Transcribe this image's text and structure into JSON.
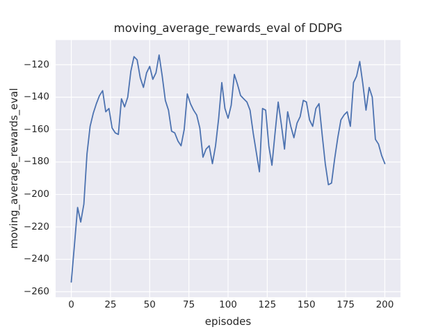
{
  "figure": {
    "background": "#ffffff",
    "axes_background": "#eaeaf2",
    "grid_color": "#ffffff",
    "text_color": "#262626",
    "line_color": "#4c72b0"
  },
  "chart_data": {
    "type": "line",
    "title": "moving_average_rewards_eval of DDPG",
    "xlabel": "episodes",
    "ylabel": "moving_average_rewards_eval",
    "grid": true,
    "legend_position": "none",
    "xlim": [
      -10,
      210
    ],
    "ylim": [
      -263.4,
      -104.8
    ],
    "xticks": [
      0,
      25,
      50,
      75,
      100,
      125,
      150,
      175,
      200
    ],
    "yticks": [
      -260,
      -240,
      -220,
      -200,
      -180,
      -160,
      -140,
      -120
    ],
    "x": [
      0,
      2,
      4,
      6,
      8,
      10,
      12,
      14,
      16,
      18,
      20,
      22,
      24,
      26,
      28,
      30,
      32,
      34,
      36,
      38,
      40,
      42,
      44,
      46,
      48,
      50,
      52,
      54,
      56,
      58,
      60,
      62,
      64,
      66,
      68,
      70,
      72,
      74,
      76,
      78,
      80,
      82,
      84,
      86,
      88,
      90,
      92,
      94,
      96,
      98,
      100,
      102,
      104,
      106,
      108,
      110,
      112,
      114,
      116,
      118,
      120,
      122,
      124,
      126,
      128,
      130,
      132,
      134,
      136,
      138,
      140,
      142,
      144,
      146,
      148,
      150,
      152,
      154,
      156,
      158,
      160,
      162,
      164,
      166,
      168,
      170,
      172,
      174,
      176,
      178,
      180,
      182,
      184,
      186,
      188,
      190,
      192,
      194,
      196,
      198,
      200
    ],
    "y": [
      -254,
      -231,
      -208,
      -217,
      -206,
      -175,
      -158,
      -150,
      -144,
      -139,
      -136,
      -149,
      -147,
      -159,
      -162,
      -163,
      -141,
      -146,
      -140,
      -124,
      -115,
      -117,
      -128,
      -134,
      -125,
      -121,
      -129,
      -125,
      -114,
      -127,
      -142,
      -148,
      -161,
      -162,
      -167,
      -170,
      -160,
      -138,
      -144,
      -148,
      -151,
      -159,
      -177,
      -172,
      -170,
      -181,
      -170,
      -153,
      -131,
      -147,
      -153,
      -145,
      -126,
      -132,
      -139,
      -141,
      -143,
      -148,
      -162,
      -174,
      -186,
      -147,
      -148,
      -170,
      -182,
      -162,
      -143,
      -157,
      -172,
      -149,
      -158,
      -165,
      -156,
      -152,
      -142,
      -143,
      -154,
      -158,
      -147,
      -144,
      -163,
      -181,
      -194,
      -193,
      -178,
      -165,
      -154,
      -151,
      -149,
      -158,
      -131,
      -127,
      -118,
      -132,
      -148,
      -134,
      -140,
      -166,
      -169,
      -176,
      -181
    ]
  }
}
